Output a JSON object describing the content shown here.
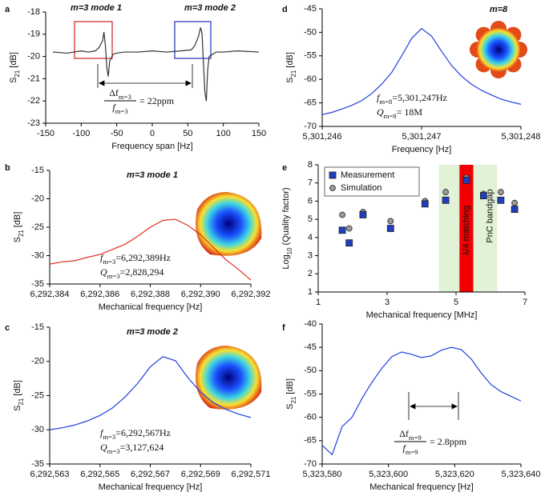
{
  "chart_data": [
    {
      "panel": "a",
      "type": "line",
      "labels": [
        "m=3 mode 1",
        "m=3 mode 2"
      ],
      "xlabel": "Frequency span [Hz]",
      "ylabel": [
        "S",
        "21",
        " [dB]"
      ],
      "xlim": [
        -150,
        150
      ],
      "xticks": [
        -150,
        -100,
        -50,
        0,
        50,
        100,
        150
      ],
      "ylim": [
        -23,
        -18
      ],
      "yticks": [
        -23,
        -22,
        -21,
        -20,
        -19,
        -18
      ],
      "fraction": {
        "num": [
          "Δf",
          "m=3"
        ],
        "den": [
          "f",
          "m=3"
        ],
        "result": "= 22ppm"
      },
      "x": [
        -140,
        -120,
        -100,
        -90,
        -80,
        -75,
        -70,
        -68,
        -66,
        -64,
        -62,
        -60,
        -55,
        -50,
        -40,
        -20,
        0,
        20,
        40,
        55,
        60,
        65,
        68,
        70,
        72,
        74,
        76,
        78,
        80,
        85,
        90,
        100,
        120,
        150
      ],
      "series": [
        {
          "color": "#333333",
          "values": [
            -19.8,
            -19.85,
            -19.75,
            -19.8,
            -19.75,
            -19.6,
            -19.3,
            -18.9,
            -19.5,
            -20.5,
            -20.9,
            -20.2,
            -19.9,
            -19.85,
            -19.8,
            -19.8,
            -19.75,
            -19.8,
            -19.75,
            -19.7,
            -19.5,
            -19.1,
            -18.7,
            -18.95,
            -20.3,
            -21.6,
            -22.0,
            -20.6,
            -20.0,
            -19.9,
            -19.8,
            -19.8,
            -19.75,
            -19.8
          ]
        }
      ]
    },
    {
      "panel": "b",
      "type": "line",
      "title": "m=3 mode 1",
      "xlabel": "Mechanical frequency [Hz]",
      "ylabel": [
        "S",
        "21",
        " [dB]"
      ],
      "xlim": [
        6292384,
        6292392
      ],
      "xticks": [
        {
          "value": 6292384,
          "label": "6,292,384"
        },
        {
          "value": 6292386,
          "label": "6,292,386"
        },
        {
          "value": 6292388,
          "label": "6,292,388"
        },
        {
          "value": 6292390,
          "label": "6,292,390"
        },
        {
          "value": 6292392,
          "label": "6,292,392"
        }
      ],
      "ylim": [
        -35,
        -15
      ],
      "yticks": [
        -35,
        -30,
        -25,
        -20,
        -15
      ],
      "annotations": [
        [
          "f",
          "m=3",
          "=6,292,389Hz"
        ],
        [
          "Q",
          "m=3",
          "=2,828,294"
        ]
      ],
      "x": [
        6292384,
        6292384.5,
        6292385,
        6292385.5,
        6292386,
        6292386.5,
        6292387,
        6292387.5,
        6292388,
        6292388.5,
        6292389,
        6292389.5,
        6292390,
        6292390.5,
        6292391,
        6292391.5,
        6292392
      ],
      "series": [
        {
          "color": "#e03020",
          "values": [
            -31.5,
            -31.1,
            -30.9,
            -30.3,
            -29.8,
            -28.9,
            -28.0,
            -26.6,
            -25.0,
            -23.8,
            -23.6,
            -24.7,
            -26.3,
            -28.5,
            -30.7,
            -32.4,
            -34.3
          ]
        }
      ]
    },
    {
      "panel": "c",
      "type": "line",
      "title": "m=3 mode 2",
      "xlabel": "Mechanical frequency [Hz]",
      "ylabel": [
        "S",
        "21",
        " [dB]"
      ],
      "xlim": [
        6292563,
        6292571
      ],
      "xticks": [
        {
          "value": 6292563,
          "label": "6,292,563"
        },
        {
          "value": 6292565,
          "label": "6,292,565"
        },
        {
          "value": 6292567,
          "label": "6,292,567"
        },
        {
          "value": 6292569,
          "label": "6,292,569"
        },
        {
          "value": 6292571,
          "label": "6,292,571"
        }
      ],
      "ylim": [
        -35,
        -15
      ],
      "yticks": [
        -35,
        -30,
        -25,
        -20,
        -15
      ],
      "annotations": [
        [
          "f",
          "m=3",
          "=6,292,567Hz"
        ],
        [
          "Q",
          "m=3",
          "=3,127,624"
        ]
      ],
      "x": [
        6292563,
        6292563.5,
        6292564,
        6292564.5,
        6292565,
        6292565.5,
        6292566,
        6292566.5,
        6292567,
        6292567.5,
        6292568,
        6292568.5,
        6292569,
        6292569.5,
        6292570,
        6292570.5,
        6292571
      ],
      "series": [
        {
          "color": "#2040e0",
          "values": [
            -30.0,
            -29.7,
            -29.3,
            -28.7,
            -27.9,
            -26.8,
            -25.2,
            -23.2,
            -20.8,
            -19.3,
            -19.9,
            -22.4,
            -24.5,
            -26.0,
            -27.0,
            -27.7,
            -28.2
          ]
        }
      ]
    },
    {
      "panel": "d",
      "type": "line",
      "title": "m=8",
      "xlabel": "Frequency [Hz]",
      "ylabel": [
        "S",
        "21",
        " [dB]"
      ],
      "xlim": [
        5301246,
        5301248
      ],
      "xticks": [
        {
          "value": 5301246,
          "label": "5,301,246"
        },
        {
          "value": 5301247,
          "label": "5,301,247"
        },
        {
          "value": 5301248,
          "label": "5,301,248"
        }
      ],
      "ylim": [
        -70,
        -45
      ],
      "yticks": [
        -70,
        -65,
        -60,
        -55,
        -50,
        -45
      ],
      "annotations": [
        [
          "f",
          "m=8",
          "=5,301,247Hz"
        ],
        [
          "Q",
          "m=8",
          "= 18M"
        ]
      ],
      "x": [
        5301246,
        5301246.1,
        5301246.2,
        5301246.3,
        5301246.4,
        5301246.5,
        5301246.6,
        5301246.7,
        5301246.8,
        5301246.9,
        5301247,
        5301247.1,
        5301247.2,
        5301247.3,
        5301247.4,
        5301247.5,
        5301247.6,
        5301247.7,
        5301247.8,
        5301247.9,
        5301248
      ],
      "series": [
        {
          "color": "#2040e0",
          "values": [
            -67.5,
            -67,
            -66.3,
            -65.5,
            -64.5,
            -63,
            -61,
            -58.5,
            -55,
            -51.3,
            -49.2,
            -50.8,
            -54,
            -57,
            -59.3,
            -61,
            -62.3,
            -63.3,
            -64.2,
            -64.8,
            -65.3
          ]
        }
      ]
    },
    {
      "panel": "e",
      "type": "scatter",
      "xlabel": "Mechanical frequency [MHz]",
      "ylabel": [
        "Log",
        "10",
        " (Quality factor)"
      ],
      "xlim": [
        1,
        7
      ],
      "xticks": [
        1,
        3,
        5,
        7
      ],
      "ylim": [
        1,
        8
      ],
      "yticks": [
        1,
        2,
        3,
        4,
        5,
        6,
        7,
        8
      ],
      "bands": [
        {
          "label": "PnC bandgap",
          "range": [
            4.5,
            6.2
          ],
          "color": "#e2f2d6"
        },
        {
          "label": "λ/4 matching",
          "range": [
            5.1,
            5.5
          ],
          "color": "#f00000"
        }
      ],
      "series": [
        {
          "name": "Measurement",
          "marker": "square",
          "color": "#1f3fbf",
          "x": [
            1.7,
            1.9,
            2.3,
            3.1,
            4.1,
            4.7,
            5.3,
            5.8,
            6.3,
            6.7
          ],
          "values": [
            4.4,
            3.7,
            5.25,
            4.5,
            5.85,
            6.05,
            7.15,
            6.3,
            6.05,
            5.55
          ]
        },
        {
          "name": "Simulation",
          "marker": "circle",
          "color": "#9a9a9a",
          "x": [
            1.7,
            1.9,
            2.3,
            3.1,
            4.1,
            4.7,
            5.3,
            5.8,
            6.3,
            6.7
          ],
          "values": [
            5.25,
            4.5,
            5.4,
            4.9,
            6.0,
            6.5,
            7.3,
            6.4,
            6.5,
            5.9
          ]
        }
      ]
    },
    {
      "panel": "f",
      "type": "line",
      "xlabel": "Mechanical frequency [Hz]",
      "ylabel": [
        "S",
        "21",
        " [dB]"
      ],
      "xlim": [
        5323580,
        5323640
      ],
      "xticks": [
        {
          "value": 5323580,
          "label": "5,323,580"
        },
        {
          "value": 5323600,
          "label": "5,323,600"
        },
        {
          "value": 5323620,
          "label": "5,323,620"
        },
        {
          "value": 5323640,
          "label": "5,323,640"
        }
      ],
      "ylim": [
        -70,
        -40
      ],
      "yticks": [
        -70,
        -65,
        -60,
        -55,
        -50,
        -45,
        -40
      ],
      "fraction": {
        "num": [
          "Δf",
          "m=9"
        ],
        "den": [
          "f",
          "m=9"
        ],
        "result": "= 2.8ppm"
      },
      "x": [
        5323580,
        5323583,
        5323586,
        5323589,
        5323592,
        5323595,
        5323598,
        5323601,
        5323604,
        5323607,
        5323610,
        5323613,
        5323616,
        5323619,
        5323622,
        5323625,
        5323628,
        5323631,
        5323634,
        5323637,
        5323640
      ],
      "series": [
        {
          "color": "#2040e0",
          "values": [
            -66,
            -68,
            -62,
            -60,
            -56,
            -52.5,
            -49.5,
            -47,
            -46,
            -46.5,
            -47.2,
            -46.8,
            -45.6,
            -45,
            -45.5,
            -47.5,
            -50.5,
            -53,
            -54.5,
            -55.5,
            -56.5
          ]
        }
      ]
    }
  ]
}
